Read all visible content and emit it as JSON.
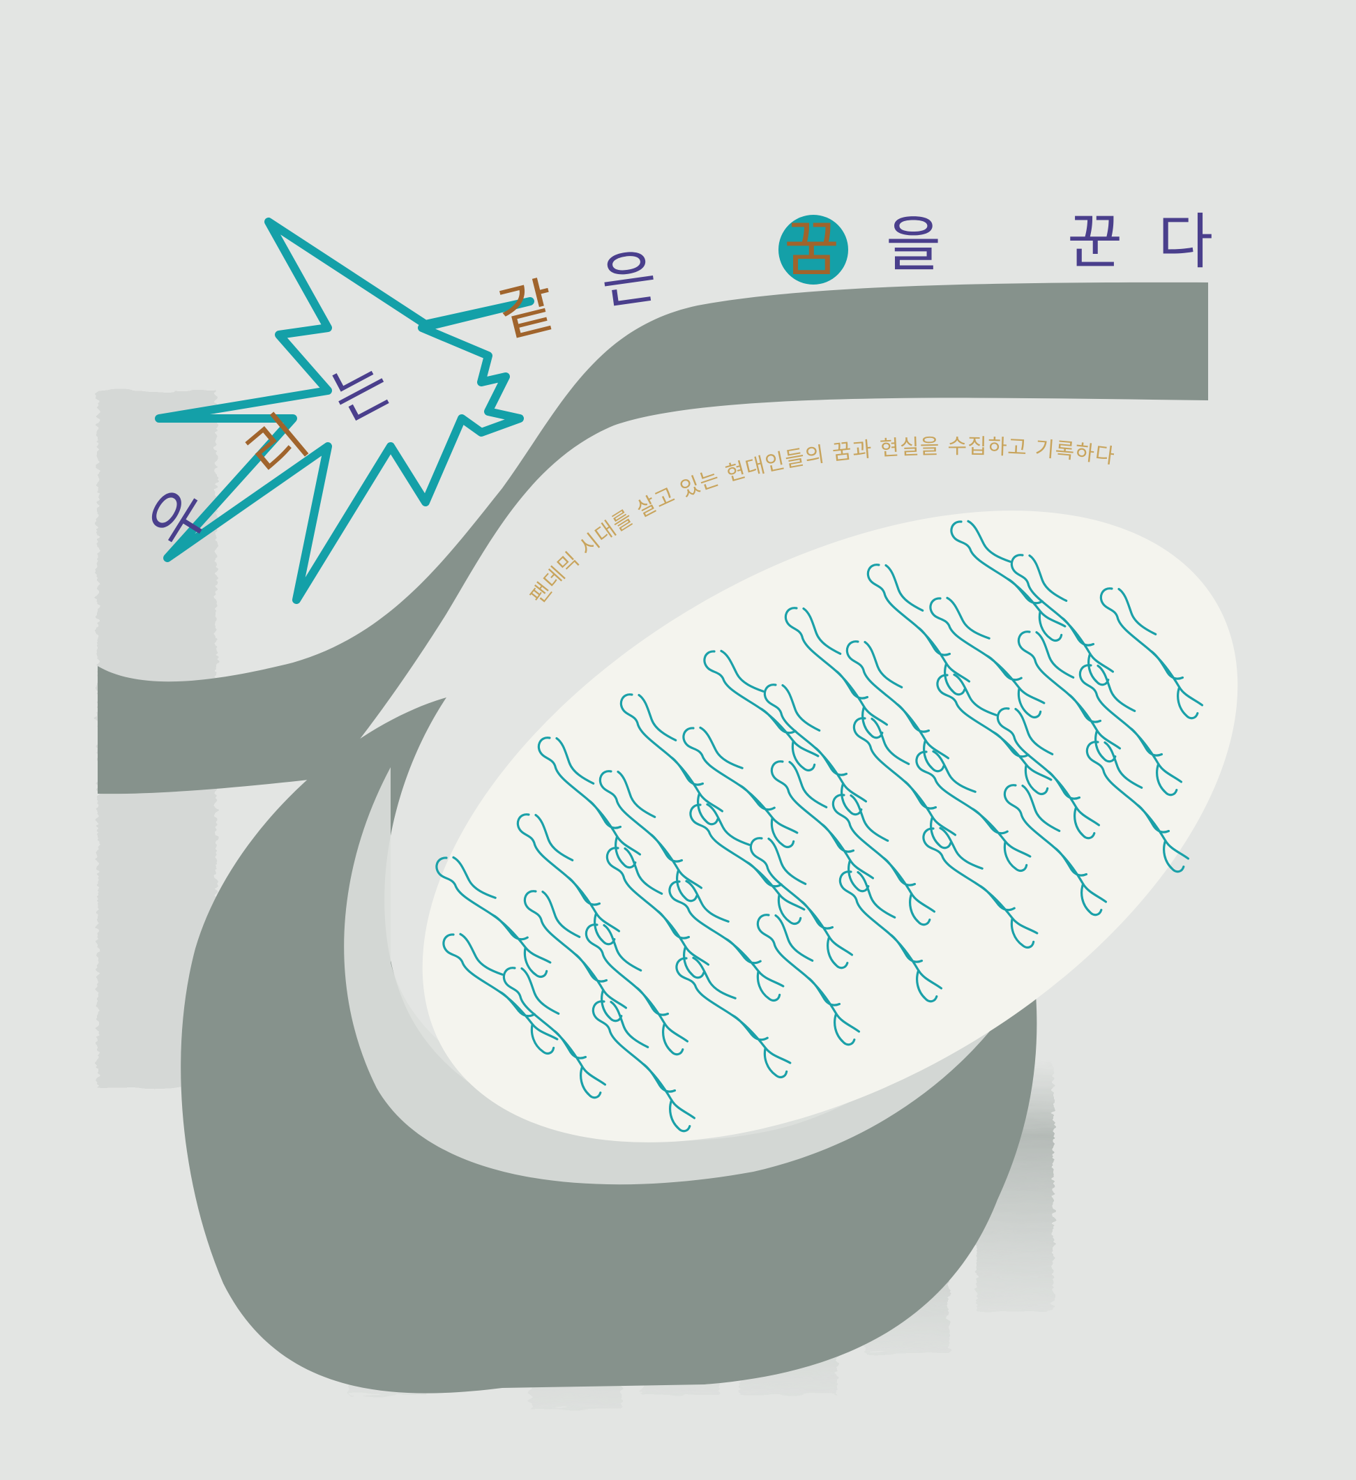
{
  "artwork": {
    "title_chars": [
      "우",
      "리",
      "는",
      "같",
      "은",
      "꿈",
      "을",
      "꾼",
      "다"
    ],
    "subtitle": "팬데믹 시대를 살고 있는 현대인들의 꿈과 현실을 수집하고 기록하다",
    "colors": {
      "background": "#e3e5e3",
      "band": "#86928c",
      "oval": "#f4f4ee",
      "figures": "#1aa0a8",
      "star": "#14a0a8",
      "title_text": "#4a3f8c",
      "title_highlight": "#a0642c",
      "subtitle_text": "#c8a45c",
      "circle": "#14a0a8"
    },
    "icons": [
      "star-burst-icon",
      "oval-figures-illustration"
    ]
  }
}
